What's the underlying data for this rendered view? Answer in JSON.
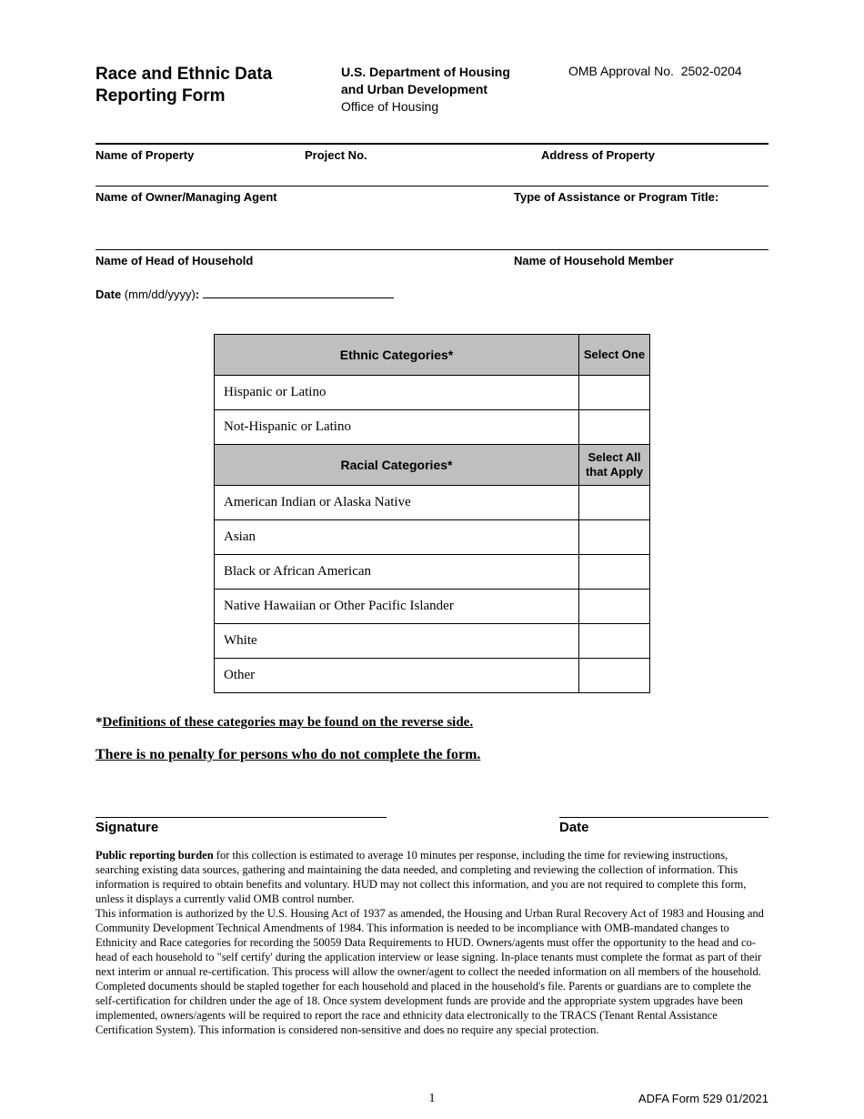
{
  "header": {
    "title_line1": "Race and Ethnic Data",
    "title_line2": "Reporting Form",
    "dept_line1": "U.S. Department of Housing",
    "dept_line2": "and Urban Development",
    "dept_line3": "Office of Housing",
    "omb": "OMB Approval No.  2502-0204"
  },
  "fields": {
    "property": "Name of Property",
    "project_no": "Project No.",
    "address": "Address of Property",
    "owner_agent": "Name of Owner/Managing Agent",
    "assistance_type": "Type of Assistance or Program Title:",
    "head_household": "Name of Head of Household",
    "member": "Name of Household Member",
    "date_label": "Date",
    "date_format": " (mm/dd/yyyy)",
    "date_colon": ":"
  },
  "table": {
    "ethnic_header": "Ethnic Categories*",
    "select_one": "Select One",
    "ethnic_options": [
      "Hispanic or Latino",
      "Not-Hispanic or Latino"
    ],
    "racial_header": "Racial Categories*",
    "select_all": "Select All that Apply",
    "racial_options": [
      "American Indian or Alaska Native",
      "Asian",
      "Black or African American",
      "Native Hawaiian or Other Pacific Islander",
      "White",
      "Other"
    ]
  },
  "notes": {
    "definitions_prefix": "*",
    "definitions": "Definitions of these categories may be found on the reverse side.",
    "no_penalty": "There is no penalty for persons who do not complete the form."
  },
  "signature": {
    "sig_label": "Signature",
    "date_label": "Date"
  },
  "fineprint": {
    "burden_bold": "Public reporting burden",
    "burden_rest": " for this collection is estimated to average 10 minutes per response, including the time for reviewing instructions, searching existing data sources, gathering and maintaining the data needed, and completing and reviewing the collection of information. This information is required to obtain benefits and voluntary. HUD may not collect this information, and you are not required to complete this form, unless it displays a currently valid OMB control number.",
    "para2": "This information is authorized by the U.S. Housing Act of 1937 as amended, the Housing and Urban Rural Recovery Act of 1983 and Housing and Community Development Technical Amendments of 1984. This information is needed to be incompliance with OMB-mandated changes to Ethnicity and Race categories for recording the 50059 Data Requirements to HUD. Owners/agents must offer the opportunity to the head and co-head of each household to \"self certify' during the application interview or lease signing. In-place tenants must complete the format as part of their next interim or annual re-certification. This process will allow the owner/agent to collect the needed information on all members of the household. Completed documents should be stapled together for each household and placed in the household's file. Parents or guardians are to complete the self-certification for children under the age of 18. Once system development funds are provide and the appropriate system upgrades have been implemented, owners/agents will be required to report the race and ethnicity data electronically to the TRACS (Tenant Rental Assistance Certification System). This information is considered non-sensitive and does no require any special protection."
  },
  "footer": {
    "page_num": "1",
    "form_id": "ADFA Form 529  01/2021"
  }
}
